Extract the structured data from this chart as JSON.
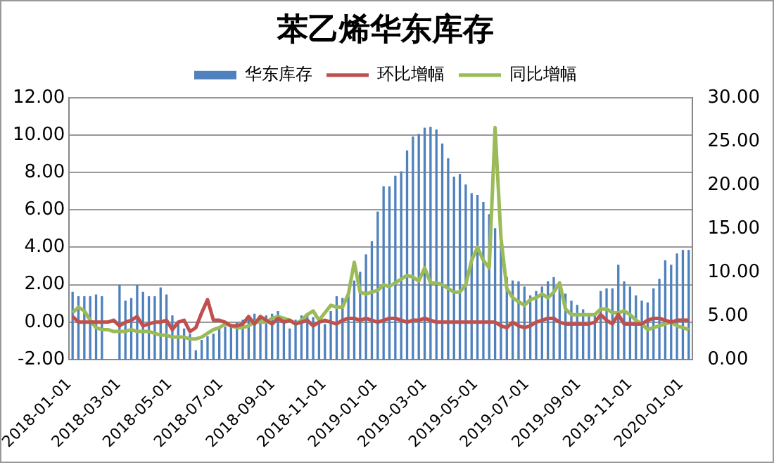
{
  "chart_data": {
    "type": "line",
    "title": "苯乙烯华东库存",
    "x": [
      "2018-01-05",
      "2018-01-12",
      "2018-01-19",
      "2018-01-26",
      "2018-02-02",
      "2018-02-09",
      "2018-02-16",
      "2018-02-23",
      "2018-03-02",
      "2018-03-09",
      "2018-03-16",
      "2018-03-23",
      "2018-03-30",
      "2018-04-06",
      "2018-04-13",
      "2018-04-20",
      "2018-04-27",
      "2018-05-04",
      "2018-05-11",
      "2018-05-18",
      "2018-05-25",
      "2018-06-01",
      "2018-06-08",
      "2018-06-15",
      "2018-06-22",
      "2018-06-29",
      "2018-07-06",
      "2018-07-13",
      "2018-07-20",
      "2018-07-27",
      "2018-08-03",
      "2018-08-10",
      "2018-08-17",
      "2018-08-24",
      "2018-08-31",
      "2018-09-07",
      "2018-09-14",
      "2018-09-21",
      "2018-09-28",
      "2018-10-05",
      "2018-10-12",
      "2018-10-19",
      "2018-10-26",
      "2018-11-02",
      "2018-11-09",
      "2018-11-16",
      "2018-11-23",
      "2018-11-30",
      "2018-12-07",
      "2018-12-14",
      "2018-12-21",
      "2018-12-28",
      "2019-01-04",
      "2019-01-11",
      "2019-01-18",
      "2019-01-25",
      "2019-02-01",
      "2019-02-08",
      "2019-02-15",
      "2019-02-22",
      "2019-03-01",
      "2019-03-08",
      "2019-03-15",
      "2019-03-22",
      "2019-03-29",
      "2019-04-05",
      "2019-04-12",
      "2019-04-19",
      "2019-04-26",
      "2019-05-03",
      "2019-05-10",
      "2019-05-17",
      "2019-05-24",
      "2019-05-31",
      "2019-06-07",
      "2019-06-14",
      "2019-06-21",
      "2019-06-28",
      "2019-07-05",
      "2019-07-12",
      "2019-07-19",
      "2019-07-26",
      "2019-08-02",
      "2019-08-09",
      "2019-08-16",
      "2019-08-23",
      "2019-08-30",
      "2019-09-06",
      "2019-09-13",
      "2019-09-20",
      "2019-09-27",
      "2019-10-04",
      "2019-10-11",
      "2019-10-18",
      "2019-10-25",
      "2019-11-01",
      "2019-11-08",
      "2019-11-15",
      "2019-11-22",
      "2019-11-29",
      "2019-12-06",
      "2019-12-13",
      "2019-12-20",
      "2019-12-27",
      "2020-01-03",
      "2020-01-10"
    ],
    "series": [
      {
        "name": "华东库存",
        "type": "bar",
        "axis": "y2",
        "color": "#4f81bd",
        "values": [
          7.7,
          7.2,
          7.2,
          7.2,
          7.4,
          7.2,
          null,
          null,
          8.5,
          6.7,
          7.0,
          8.5,
          7.7,
          7.2,
          7.2,
          8.2,
          7.4,
          5.0,
          4.2,
          3.5,
          2.9,
          1.0,
          2.2,
          2.6,
          2.9,
          3.5,
          3.7,
          4.0,
          4.2,
          4.5,
          5.0,
          5.2,
          5.0,
          5.0,
          5.2,
          5.5,
          4.8,
          3.5,
          4.5,
          5.0,
          5.2,
          4.8,
          4.5,
          4.0,
          5.5,
          7.2,
          7.0,
          7.5,
          9.0,
          10.0,
          12.0,
          13.5,
          16.9,
          19.8,
          19.8,
          21.0,
          21.5,
          23.9,
          25.5,
          25.8,
          26.5,
          26.6,
          26.3,
          24.7,
          23.0,
          20.9,
          21.2,
          20.0,
          19.0,
          18.8,
          18.0,
          16.6,
          15.0,
          14.8,
          9.4,
          9.0,
          8.9,
          8.3,
          7.3,
          7.8,
          8.3,
          8.9,
          9.4,
          8.3,
          7.5,
          6.7,
          6.2,
          5.7,
          5.2,
          5.0,
          7.8,
          8.1,
          8.1,
          10.8,
          8.9,
          8.3,
          7.3,
          6.7,
          6.5,
          8.1,
          9.2,
          11.3,
          10.8,
          12.1,
          12.5,
          12.5
        ]
      },
      {
        "name": "环比增幅",
        "color": "#c0504d",
        "values": [
          0.3,
          0.0,
          0.0,
          0.0,
          0.0,
          0.0,
          0.0,
          0.1,
          -0.2,
          0.0,
          0.1,
          0.3,
          -0.2,
          -0.1,
          0.0,
          0.0,
          0.1,
          -0.4,
          0.0,
          0.1,
          -0.5,
          -0.3,
          0.5,
          1.2,
          0.1,
          0.1,
          0.0,
          -0.2,
          -0.2,
          -0.1,
          0.3,
          -0.1,
          0.3,
          0.1,
          -0.1,
          0.2,
          0.0,
          0.1,
          -0.1,
          0.0,
          0.1,
          -0.2,
          0.0,
          0.1,
          0.0,
          -0.1,
          0.1,
          0.2,
          0.2,
          0.1,
          0.2,
          0.1,
          0.0,
          0.1,
          0.2,
          0.2,
          0.1,
          0.0,
          0.1,
          0.1,
          0.2,
          0.1,
          0.0,
          0.0,
          0.0,
          0.0,
          0.0,
          0.0,
          0.0,
          0.0,
          0.0,
          0.0,
          0.0,
          -0.2,
          -0.3,
          0.0,
          -0.2,
          -0.3,
          -0.2,
          0.0,
          0.1,
          0.2,
          0.2,
          0.0,
          -0.1,
          -0.1,
          -0.1,
          -0.1,
          -0.1,
          0.0,
          0.4,
          0.1,
          -0.1,
          0.4,
          -0.1,
          -0.1,
          -0.1,
          -0.1,
          0.1,
          0.2,
          0.2,
          0.1,
          0.0,
          0.1,
          0.1,
          0.1
        ]
      },
      {
        "name": "同比增幅",
        "color": "#9bbb59",
        "values": [
          0.5,
          0.8,
          0.6,
          0.1,
          -0.3,
          -0.4,
          -0.4,
          -0.5,
          -0.5,
          -0.5,
          -0.4,
          -0.5,
          -0.5,
          -0.5,
          -0.6,
          -0.7,
          -0.7,
          -0.8,
          -0.8,
          -0.8,
          -0.9,
          -0.9,
          -0.8,
          -0.6,
          -0.4,
          -0.3,
          -0.1,
          -0.2,
          -0.3,
          -0.3,
          -0.2,
          0.0,
          0.0,
          0.0,
          0.2,
          0.3,
          0.2,
          0.1,
          -0.1,
          0.1,
          0.4,
          0.6,
          0.1,
          0.5,
          0.9,
          0.8,
          0.8,
          1.5,
          3.2,
          1.6,
          1.5,
          1.6,
          1.7,
          2.0,
          1.9,
          2.1,
          2.3,
          2.5,
          2.4,
          2.2,
          2.9,
          2.1,
          2.1,
          2.0,
          1.8,
          1.6,
          1.6,
          2.0,
          3.3,
          4.0,
          3.3,
          2.9,
          10.4,
          4.5,
          1.8,
          1.3,
          1.1,
          0.9,
          1.2,
          1.3,
          1.5,
          1.3,
          1.6,
          2.1,
          0.7,
          0.4,
          0.4,
          0.4,
          0.4,
          0.4,
          0.7,
          0.7,
          0.5,
          0.5,
          0.6,
          0.4,
          0.1,
          -0.1,
          -0.4,
          -0.3,
          -0.2,
          -0.1,
          0.0,
          -0.2,
          -0.3,
          -0.4
        ]
      }
    ],
    "xlim": [
      "2018-01-01",
      "2020-01-14"
    ],
    "xticks": [
      "2018-01-01",
      "2018-03-01",
      "2018-05-01",
      "2018-07-01",
      "2018-09-01",
      "2018-11-01",
      "2019-01-01",
      "2019-03-01",
      "2019-05-01",
      "2019-07-01",
      "2019-09-01",
      "2019-11-01",
      "2020-01-01"
    ],
    "ylim": [
      -2,
      12
    ],
    "yticks": [
      {
        "value": -2,
        "label": "-2.00"
      },
      {
        "value": 0,
        "label": "0.00"
      },
      {
        "value": 2,
        "label": "2.00"
      },
      {
        "value": 4,
        "label": "4.00"
      },
      {
        "value": 6,
        "label": "6.00"
      },
      {
        "value": 8,
        "label": "8.00"
      },
      {
        "value": 10,
        "label": "10.00"
      },
      {
        "value": 12,
        "label": "12.00"
      }
    ],
    "y2lim": [
      0,
      30
    ],
    "y2ticks": [
      {
        "value": 0,
        "label": "0.00"
      },
      {
        "value": 5,
        "label": "5.00"
      },
      {
        "value": 10,
        "label": "10.00"
      },
      {
        "value": 15,
        "label": "15.00"
      },
      {
        "value": 20,
        "label": "20.00"
      },
      {
        "value": 25,
        "label": "25.00"
      },
      {
        "value": 30,
        "label": "30.00"
      }
    ],
    "grid": "y",
    "legend": "top",
    "marker": "none",
    "line_style": "solid"
  }
}
